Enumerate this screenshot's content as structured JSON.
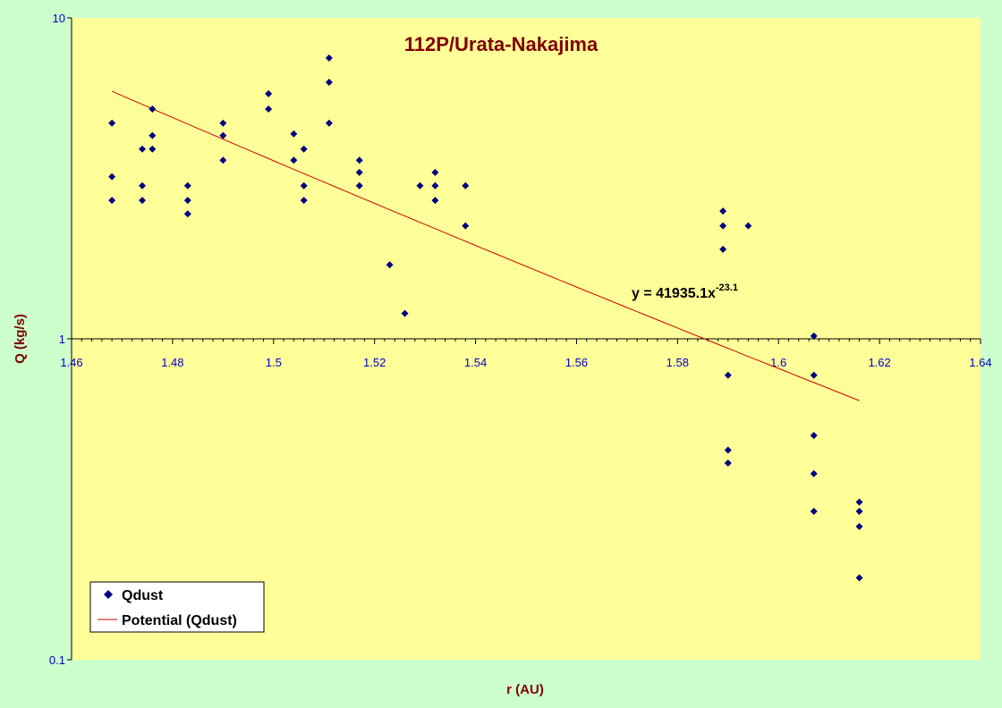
{
  "chart_data": {
    "type": "scatter",
    "title": "112P/Urata-Nakajima",
    "xlabel": "r (AU)",
    "ylabel": "Q (kg/s)",
    "xlim": [
      1.46,
      1.64
    ],
    "ylim": [
      0.1,
      10
    ],
    "y_scale": "log",
    "grid": false,
    "x_ticks": [
      "1.46",
      "1.48",
      "1.5",
      "1.52",
      "1.54",
      "1.56",
      "1.58",
      "1.6",
      "1.62",
      "1.64"
    ],
    "y_ticks": [
      "0.1",
      "1",
      "10"
    ],
    "x_tick_values": [
      1.46,
      1.48,
      1.5,
      1.52,
      1.54,
      1.56,
      1.58,
      1.6,
      1.62,
      1.64
    ],
    "y_tick_values": [
      0.1,
      1,
      10
    ],
    "series": [
      {
        "name": "Qdust",
        "marker": "diamond",
        "color": "#000080",
        "x": [
          1.468,
          1.468,
          1.468,
          1.474,
          1.474,
          1.474,
          1.476,
          1.476,
          1.476,
          1.483,
          1.483,
          1.483,
          1.49,
          1.49,
          1.49,
          1.499,
          1.499,
          1.504,
          1.504,
          1.506,
          1.506,
          1.506,
          1.511,
          1.511,
          1.511,
          1.517,
          1.517,
          1.517,
          1.523,
          1.526,
          1.529,
          1.532,
          1.532,
          1.532,
          1.538,
          1.538,
          1.589,
          1.589,
          1.589,
          1.59,
          1.59,
          1.59,
          1.594,
          1.607,
          1.607,
          1.607,
          1.607,
          1.607,
          1.616,
          1.616,
          1.616,
          1.616
        ],
        "y": [
          4.7,
          3.2,
          2.7,
          3.9,
          3.0,
          2.7,
          5.2,
          4.3,
          3.9,
          3.0,
          2.7,
          2.45,
          4.7,
          4.3,
          3.6,
          5.8,
          5.2,
          4.35,
          3.6,
          3.9,
          3.0,
          2.7,
          7.5,
          6.3,
          4.7,
          3.6,
          3.3,
          3.0,
          1.7,
          1.2,
          3.0,
          3.3,
          3.0,
          2.7,
          3.0,
          2.25,
          2.5,
          2.25,
          1.9,
          0.77,
          0.45,
          0.41,
          2.25,
          1.02,
          0.77,
          0.5,
          0.38,
          0.29,
          0.31,
          0.29,
          0.26,
          0.18
        ]
      },
      {
        "name": "Potential (Qdust)",
        "type": "line",
        "color": "#cc0000",
        "equation": "y = 41935.1x",
        "exponent": "-23.1",
        "coefficient": 41935.1,
        "power": -23.1,
        "x_range": [
          1.468,
          1.616
        ]
      }
    ],
    "legend": {
      "position": "bottom-left",
      "entries": [
        "Qdust",
        "Potential (Qdust)"
      ]
    }
  }
}
